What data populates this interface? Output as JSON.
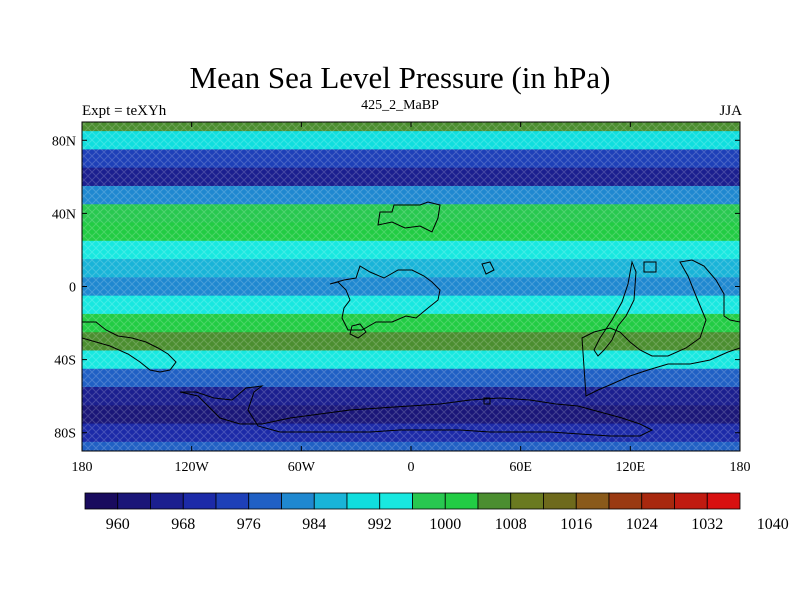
{
  "title": "Mean Sea Level Pressure (in hPa)",
  "left_string": "Expt = teXYh",
  "center_string": "425_2_MaBP",
  "right_string": "JJA",
  "map": {
    "projection": "cylindrical-equidistant",
    "lon_range": [
      -180,
      180
    ],
    "lat_range": [
      -90,
      90
    ],
    "x_ticks": [
      "180",
      "120W",
      "60W",
      "0",
      "60E",
      "120E",
      "180"
    ],
    "y_ticks": [
      "80N",
      "40N",
      "0",
      "40S",
      "80S"
    ],
    "contour_fill_pattern": "diamond-hatched"
  },
  "colorbar": {
    "labels": [
      "960",
      "968",
      "976",
      "984",
      "992",
      "1000",
      "1008",
      "1016",
      "1024",
      "1032",
      "1040"
    ],
    "colors": [
      "#190b5e",
      "#1a1678",
      "#1b1f8f",
      "#1c2aa8",
      "#1e40b8",
      "#2060c4",
      "#1f88d0",
      "#19b4d8",
      "#10dede",
      "#18e8e0",
      "#28c850",
      "#22cc44",
      "#4b8e30",
      "#6a7a20",
      "#6e6a1c",
      "#8a5a1a",
      "#9a3a12",
      "#a8280e",
      "#c01a10",
      "#d81010"
    ]
  },
  "chart_data": {
    "type": "heatmap",
    "title": "Mean Sea Level Pressure (in hPa)",
    "variable_units": "hPa",
    "zonal_mean_profile": {
      "lat": [
        90,
        80,
        70,
        60,
        50,
        40,
        30,
        20,
        10,
        0,
        -10,
        -20,
        -30,
        -40,
        -50,
        -60,
        -70,
        -80,
        -90
      ],
      "value": [
        1004,
        988,
        974,
        966,
        980,
        996,
        1000,
        994,
        986,
        982,
        992,
        1000,
        1004,
        992,
        976,
        966,
        962,
        968,
        978
      ]
    }
  }
}
